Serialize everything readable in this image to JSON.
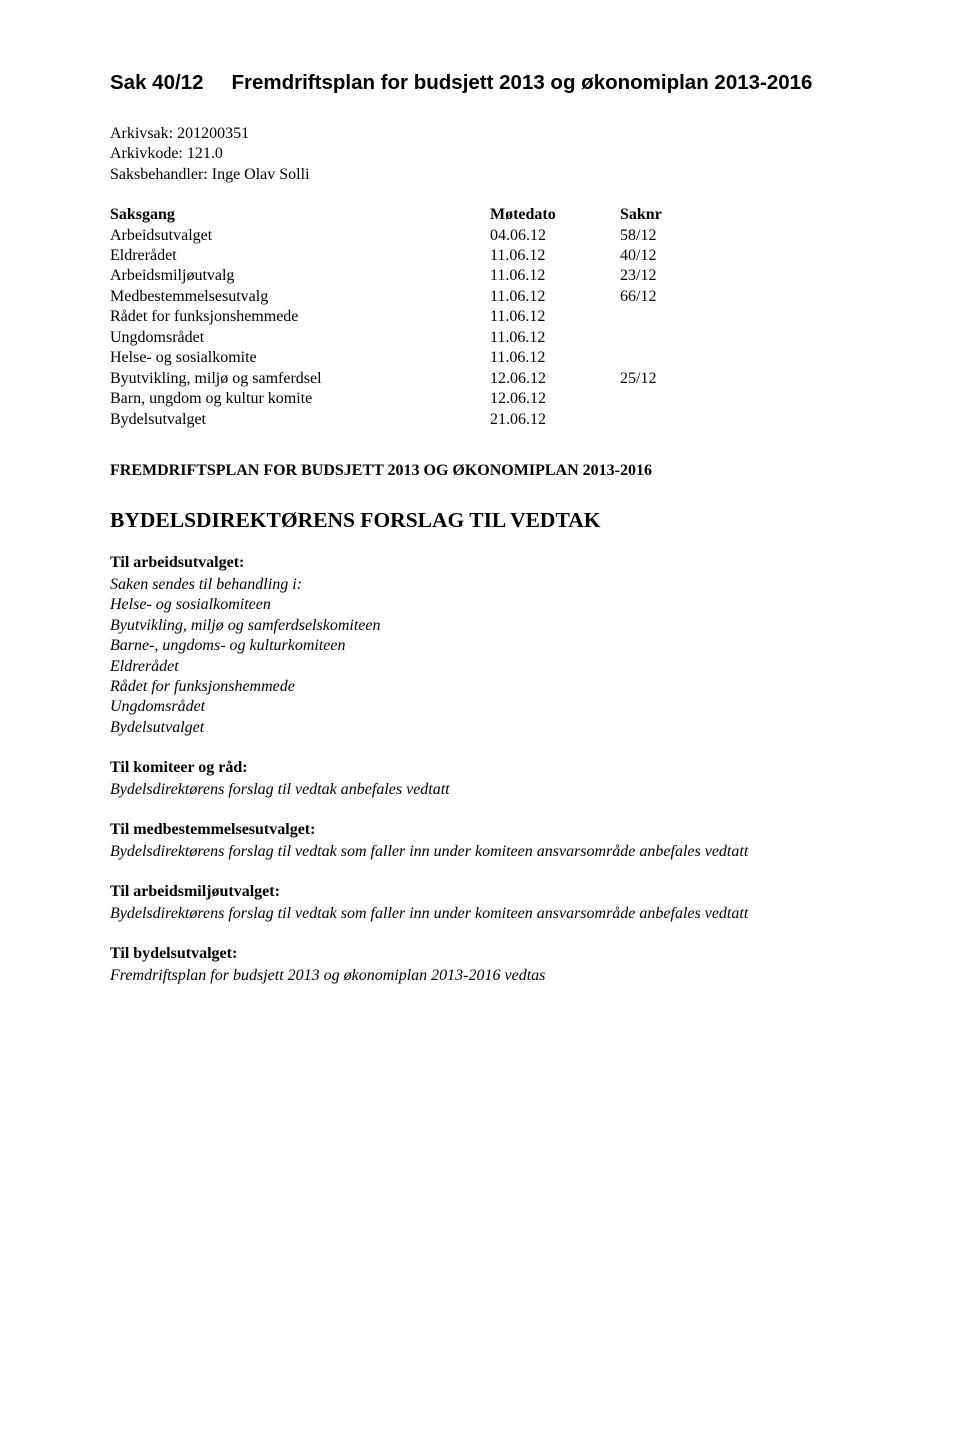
{
  "header": {
    "sakNr": "Sak 40/12",
    "title": "Fremdriftsplan for budsjett 2013 og økonomiplan 2013-2016"
  },
  "arkiv": {
    "arkivsak": "Arkivsak: 201200351",
    "arkivkode": "Arkivkode: 121.0",
    "saksbehandler": "Saksbehandler: Inge Olav  Solli"
  },
  "table": {
    "headers": {
      "c1": "Saksgang",
      "c2": "Møtedato",
      "c3": "Saknr"
    },
    "rows": [
      {
        "c1": "Arbeidsutvalget",
        "c2": "04.06.12",
        "c3": "58/12"
      },
      {
        "c1": "Eldrerådet",
        "c2": "11.06.12",
        "c3": "40/12"
      },
      {
        "c1": "Arbeidsmiljøutvalg",
        "c2": "11.06.12",
        "c3": "23/12"
      },
      {
        "c1": "Medbestemmelsesutvalg",
        "c2": "11.06.12",
        "c3": "66/12"
      },
      {
        "c1": "Rådet for funksjonshemmede",
        "c2": "11.06.12",
        "c3": ""
      },
      {
        "c1": "Ungdomsrådet",
        "c2": "11.06.12",
        "c3": ""
      },
      {
        "c1": "Helse- og sosialkomite",
        "c2": "11.06.12",
        "c3": ""
      },
      {
        "c1": "Byutvikling, miljø og samferdsel",
        "c2": "12.06.12",
        "c3": "25/12"
      },
      {
        "c1": "Barn, ungdom og kultur komite",
        "c2": "12.06.12",
        "c3": ""
      },
      {
        "c1": "Bydelsutvalget",
        "c2": "21.06.12",
        "c3": ""
      }
    ]
  },
  "sectionUpper": "FREMDRIFTSPLAN FOR BUDSJETT 2013 OG ØKONOMIPLAN 2013-2016",
  "mainHeading": "BYDELSDIREKTØRENS FORSLAG TIL VEDTAK",
  "blocks": {
    "arbeidsutvalget": {
      "title": "Til arbeidsutvalget:",
      "lines": [
        "Saken sendes til behandling i:",
        "Helse- og sosialkomiteen",
        "Byutvikling, miljø og samferdselskomiteen",
        "Barne-, ungdoms- og kulturkomiteen",
        "Eldrerådet",
        "Rådet for funksjonshemmede",
        "Ungdomsrådet",
        "Bydelsutvalget"
      ]
    },
    "komiteer": {
      "title": "Til komiteer og råd:",
      "line": "Bydelsdirektørens forslag til vedtak anbefales vedtatt"
    },
    "medbest": {
      "title": "Til medbestemmelsesutvalget:",
      "line": "Bydelsdirektørens forslag til vedtak som faller inn under komiteen ansvarsområde anbefales vedtatt"
    },
    "arbeidsmiljo": {
      "title": "Til arbeidsmiljøutvalget:",
      "line": "Bydelsdirektørens forslag til vedtak som faller inn under komiteen ansvarsområde anbefales vedtatt"
    },
    "bydelsutvalget": {
      "title": "Til bydelsutvalget:",
      "line": "Fremdriftsplan for budsjett 2013 og økonomiplan 2013-2016 vedtas"
    }
  }
}
